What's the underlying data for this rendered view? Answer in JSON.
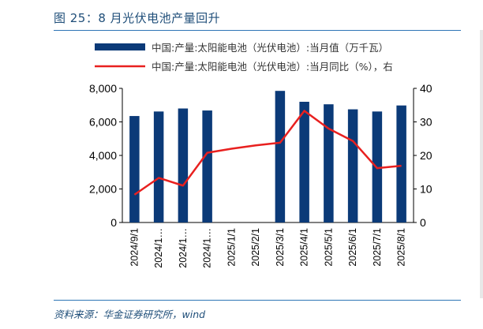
{
  "header": {
    "title": "图 25：8 月光伏电池产量回升"
  },
  "footer": {
    "source": "资料来源：华金证券研究所，wind"
  },
  "colors": {
    "bar": "#0b3a78",
    "line": "#e8201f",
    "rule": "#2e75b6",
    "title": "#1f4e79"
  },
  "chart_data": {
    "type": "bar",
    "categories": [
      "2024/9/1",
      "2024/1…",
      "2024/1…",
      "2024/1…",
      "2025/1/1",
      "2025/2/1",
      "2025/3/1",
      "2025/4/1",
      "2025/5/1",
      "2025/6/1",
      "2025/7/1",
      "2025/8/1"
    ],
    "series": [
      {
        "name": "中国:产量:太阳能电池（光伏电池）:当月值（万千瓦）",
        "type": "bar",
        "axis": "left",
        "values": [
          6350,
          6620,
          6800,
          6680,
          null,
          null,
          7850,
          7200,
          7050,
          6750,
          6620,
          6980
        ]
      },
      {
        "name": "中国:产量:太阳能电池（光伏电池）:当月同比（%），右",
        "type": "line",
        "axis": "right",
        "values": [
          8.3,
          13.3,
          11.0,
          20.8,
          22.0,
          23.0,
          23.8,
          33.3,
          28.0,
          24.3,
          16.2,
          16.9
        ]
      }
    ],
    "y_left": {
      "min": 0,
      "max": 8000,
      "ticks": [
        "0",
        "2,000",
        "4,000",
        "6,000",
        "8,000"
      ]
    },
    "y_right": {
      "min": 0,
      "max": 40,
      "ticks": [
        "0",
        "10",
        "20",
        "30",
        "40"
      ]
    },
    "grid": false,
    "legend_position": "top"
  }
}
